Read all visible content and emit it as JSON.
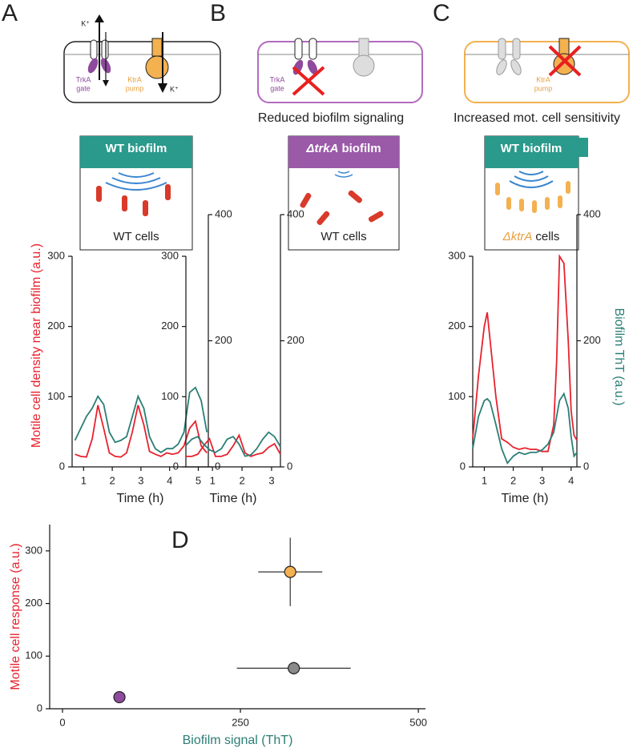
{
  "panels": [
    "A",
    "B",
    "C",
    "D"
  ],
  "schematics": [
    {
      "ions": [
        "K⁺",
        "K⁺"
      ],
      "gate": [
        "TrkA",
        "gate"
      ],
      "pump": [
        "KtrA",
        "pump"
      ]
    },
    {
      "gate": [
        "TrkA",
        "gate"
      ],
      "caption": "Reduced biofilm signaling"
    },
    {
      "pump": [
        "KtrA",
        "pump"
      ],
      "caption": "Increased mot. cell sensitivity"
    }
  ],
  "chambers": [
    {
      "biofilm": "WT biofilm",
      "cells": "WT cells"
    },
    {
      "biofilm_strain": "ΔtrkA",
      "biofilm": "biofilm",
      "cells": "WT cells"
    },
    {
      "biofilm": "WT biofilm",
      "cells_strain": "ΔktrA",
      "cells": "cells"
    }
  ],
  "chart_data": [
    {
      "type": "line",
      "xlabel": "Time (h)",
      "ylabel": "Motile cell density near biofilm (a.u.)",
      "x": [
        0.7,
        0.9,
        1.1,
        1.3,
        1.5,
        1.7,
        1.9,
        2.1,
        2.3,
        2.5,
        2.7,
        2.9,
        3.1,
        3.3,
        3.5,
        3.7,
        3.9,
        4.1,
        4.3,
        4.5,
        4.7,
        4.9,
        5.1,
        5.3
      ],
      "xlim": [
        0.6,
        5.35
      ],
      "xticks": [
        1,
        2,
        3,
        4,
        5
      ],
      "ylim": [
        0,
        300
      ],
      "yticks": [
        0,
        100,
        200,
        300
      ],
      "y2lim": [
        0,
        400
      ],
      "y2ticks": [
        0,
        200,
        400
      ],
      "series": [
        {
          "color": "#e8222e",
          "values": [
            18,
            15,
            14,
            40,
            88,
            55,
            20,
            15,
            14,
            20,
            50,
            88,
            60,
            22,
            18,
            15,
            20,
            18,
            20,
            30,
            55,
            65,
            30,
            20
          ]
        },
        {
          "color": "#2a7f75",
          "axis": "y2",
          "values": [
            42,
            61,
            80,
            93,
            112,
            99,
            55,
            39,
            42,
            48,
            80,
            112,
            93,
            48,
            29,
            23,
            29,
            29,
            36,
            55,
            118,
            126,
            105,
            55
          ]
        }
      ]
    },
    {
      "type": "line",
      "xlabel": "Time (h)",
      "x": [
        0.1,
        0.3,
        0.5,
        0.7,
        0.9,
        1.1,
        1.3,
        1.5,
        1.7,
        1.9,
        2.1,
        2.3,
        2.5,
        2.7,
        2.9,
        3.1,
        3.3
      ],
      "xlim": [
        0.1,
        3.3
      ],
      "xticks": [
        1,
        2,
        3
      ],
      "ylim": [
        0,
        300
      ],
      "yticks": [
        0,
        100,
        200,
        300
      ],
      "y2lim": [
        0,
        400
      ],
      "y2ticks": [
        0,
        200,
        400
      ],
      "series": [
        {
          "color": "#e8222e",
          "values": [
            15,
            15,
            18,
            30,
            40,
            15,
            15,
            18,
            30,
            45,
            20,
            15,
            18,
            20,
            28,
            33,
            18
          ]
        },
        {
          "color": "#2a7f75",
          "axis": "y2",
          "values": [
            34,
            44,
            48,
            36,
            27,
            23,
            29,
            44,
            48,
            36,
            17,
            19,
            29,
            44,
            55,
            48,
            32
          ]
        }
      ]
    },
    {
      "type": "line",
      "xlabel": "Time (h)",
      "y2label": "Biofilm ThT (a.u.)",
      "x": [
        0.6,
        0.8,
        1.0,
        1.1,
        1.2,
        1.4,
        1.6,
        1.8,
        2.0,
        2.2,
        2.4,
        2.6,
        2.8,
        3.0,
        3.2,
        3.4,
        3.5,
        3.6,
        3.75,
        3.9,
        4.0,
        4.1,
        4.2
      ],
      "xlim": [
        0.6,
        4.2
      ],
      "xticks": [
        1,
        2,
        3,
        4
      ],
      "ylim": [
        0,
        300
      ],
      "yticks": [
        0,
        100,
        200,
        300
      ],
      "y2lim": [
        0,
        400
      ],
      "y2ticks": [
        0,
        200,
        400
      ],
      "series": [
        {
          "color": "#e8222e",
          "values": [
            40,
            130,
            200,
            220,
            180,
            100,
            40,
            35,
            28,
            25,
            27,
            25,
            25,
            22,
            22,
            60,
            150,
            300,
            290,
            180,
            80,
            45,
            38
          ]
        },
        {
          "color": "#2a7f75",
          "axis": "y2",
          "values": [
            29,
            80,
            105,
            108,
            103,
            67,
            29,
            6,
            17,
            23,
            20,
            23,
            23,
            27,
            36,
            55,
            80,
            105,
            116,
            93,
            48,
            17,
            23
          ]
        }
      ]
    },
    {
      "type": "scatter",
      "xlabel": "Biofilm signal (ThT)",
      "ylabel": "Motile cell response (a.u.)",
      "x": [
        80,
        320,
        325
      ],
      "values": [
        22,
        260,
        77
      ],
      "xerr": [
        8,
        45,
        80
      ],
      "yerr": [
        8,
        65,
        12
      ],
      "colors": [
        "#8e4a9c",
        "#f3b150",
        "#8a8a8a"
      ],
      "xlim": [
        -18,
        510
      ],
      "xticks": [
        0,
        250,
        500
      ],
      "ylim": [
        0,
        350
      ],
      "yticks": [
        0,
        100,
        200,
        300
      ]
    }
  ]
}
